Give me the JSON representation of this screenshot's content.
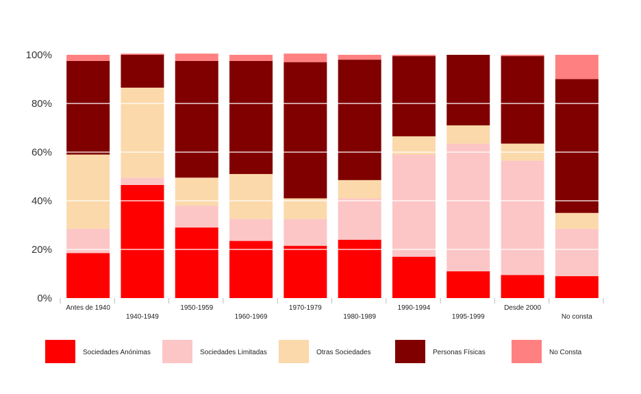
{
  "chart_data": {
    "type": "bar",
    "stacked": true,
    "percent": true,
    "categories": [
      "Antes de 1940",
      "1940-1949",
      "1950-1959",
      "1960-1969",
      "1970-1979",
      "1980-1989",
      "1990-1994",
      "1995-1999",
      "Desde 2000",
      "No consta"
    ],
    "series": [
      {
        "name": "Sociedades Anónimas",
        "color": "#ff0000",
        "values": [
          18.5,
          46.5,
          29,
          23.5,
          21.5,
          24,
          17,
          11,
          9.5,
          9
        ]
      },
      {
        "name": "Sociedades Limitadas",
        "color": "#fcc6c6",
        "values": [
          10,
          3,
          9,
          9,
          11,
          17,
          42,
          52.5,
          47,
          19.5
        ]
      },
      {
        "name": "Otras Sociedades",
        "color": "#fbd9aa",
        "values": [
          30.5,
          37,
          11.5,
          18.5,
          8.5,
          7.5,
          7.5,
          7.5,
          7,
          6.5
        ]
      },
      {
        "name": "Personas Físicas",
        "color": "#800000",
        "values": [
          38.5,
          13.5,
          48,
          46.5,
          56,
          49.5,
          33,
          29,
          36,
          55
        ]
      },
      {
        "name": "No Consta",
        "color": "#ff8080",
        "values": [
          2.5,
          0.5,
          3,
          2.5,
          3.5,
          2,
          0.5,
          0,
          0.5,
          10
        ]
      }
    ],
    "ylim": [
      0,
      100
    ],
    "yticks": [
      "0%",
      "20%",
      "40%",
      "60%",
      "80%",
      "100%"
    ],
    "grid": true,
    "legend_position": "bottom"
  }
}
